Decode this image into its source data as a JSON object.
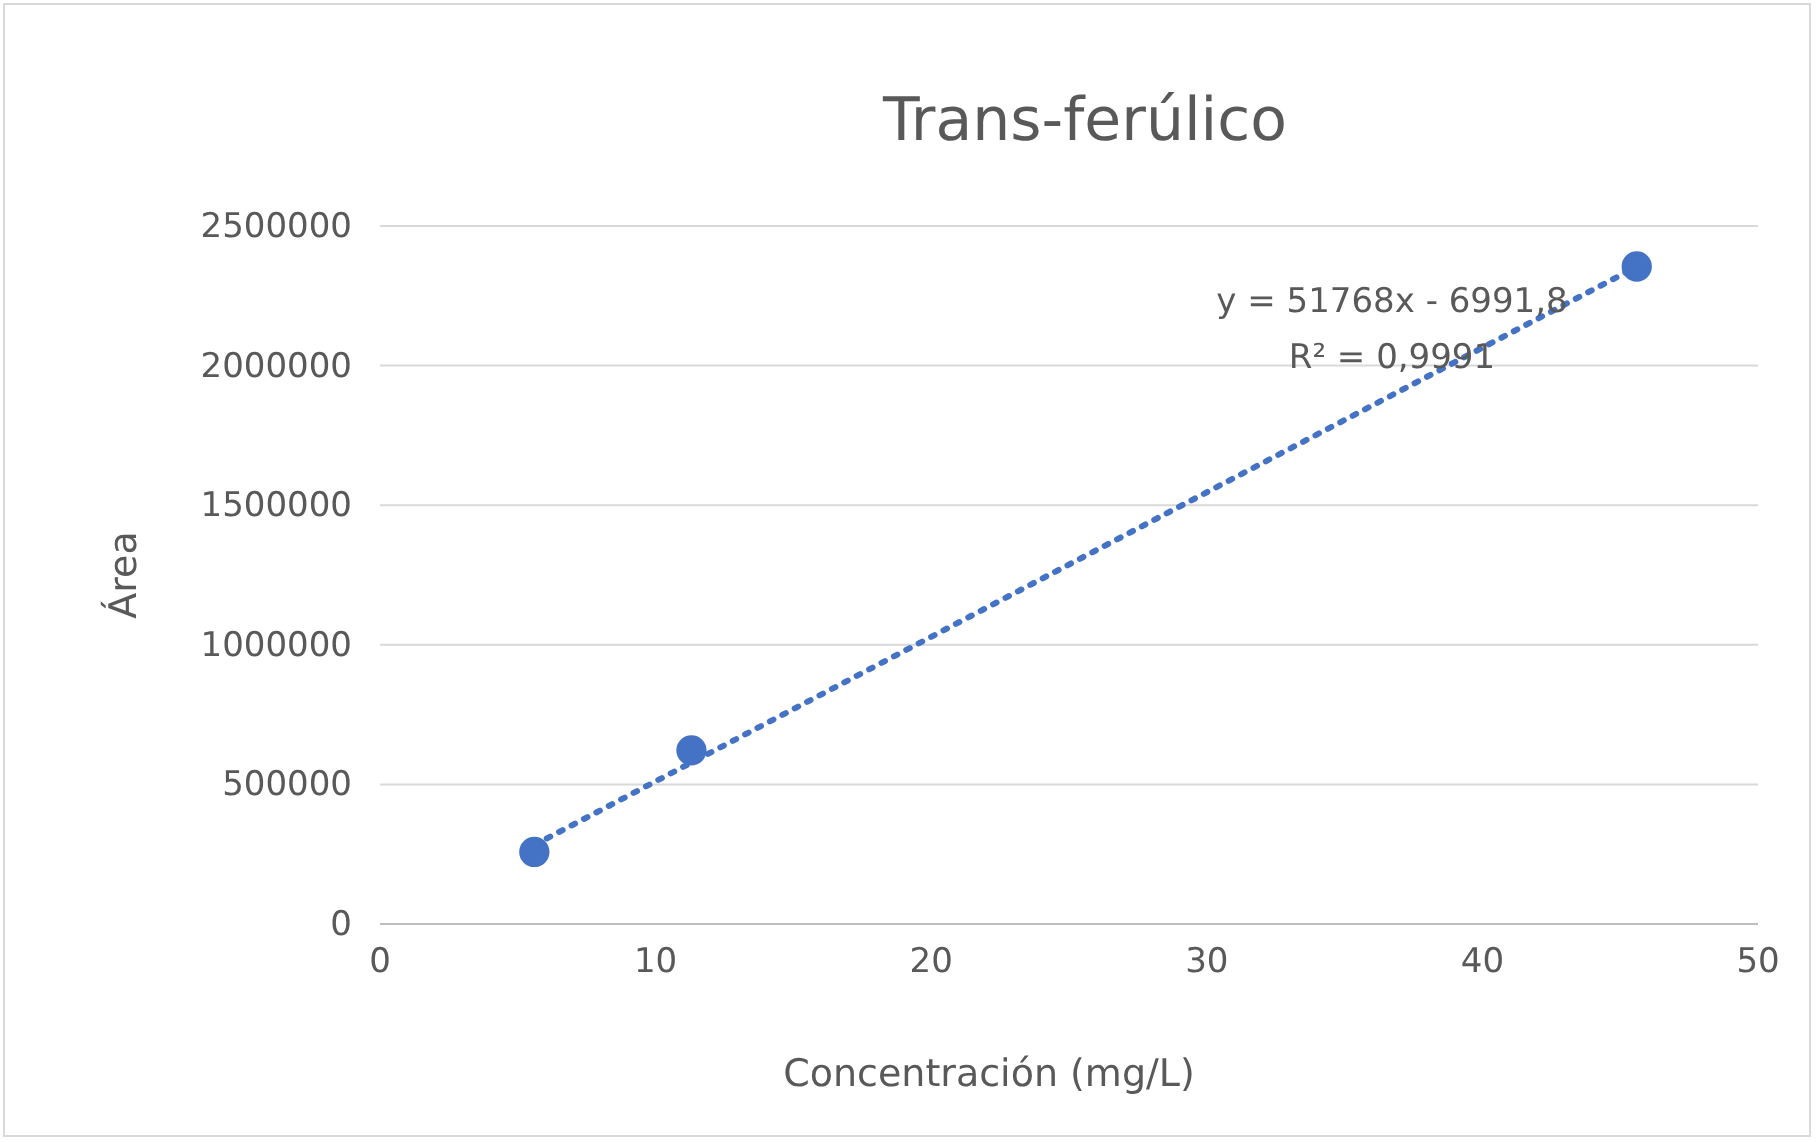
{
  "chart_data": {
    "type": "scatter",
    "title": "Trans-ferúlico",
    "xlabel": "Concentración (mg/L)",
    "ylabel": "Área",
    "series": [
      {
        "color": "#4472c4",
        "x": [
          5.6,
          11.3,
          45.6
        ],
        "values": [
          258000,
          622000,
          2355000
        ],
        "marker": "circle"
      },
      {
        "type": "line",
        "color": "#4472c4",
        "x": [
          5.6,
          45.6
        ],
        "values": [
          283000,
          2354000
        ],
        "line_style": "dotted",
        "marker": "none"
      }
    ],
    "xlim": [
      0,
      50
    ],
    "xticks": [
      0,
      10,
      20,
      30,
      40,
      50
    ],
    "ylim": [
      0,
      2500000
    ],
    "yticks": [
      0,
      500000,
      1000000,
      1500000,
      2000000,
      2500000
    ],
    "grid": "y",
    "annotations": [
      "y = 51768x - 6991,8",
      "R² = 0,9991"
    ]
  }
}
